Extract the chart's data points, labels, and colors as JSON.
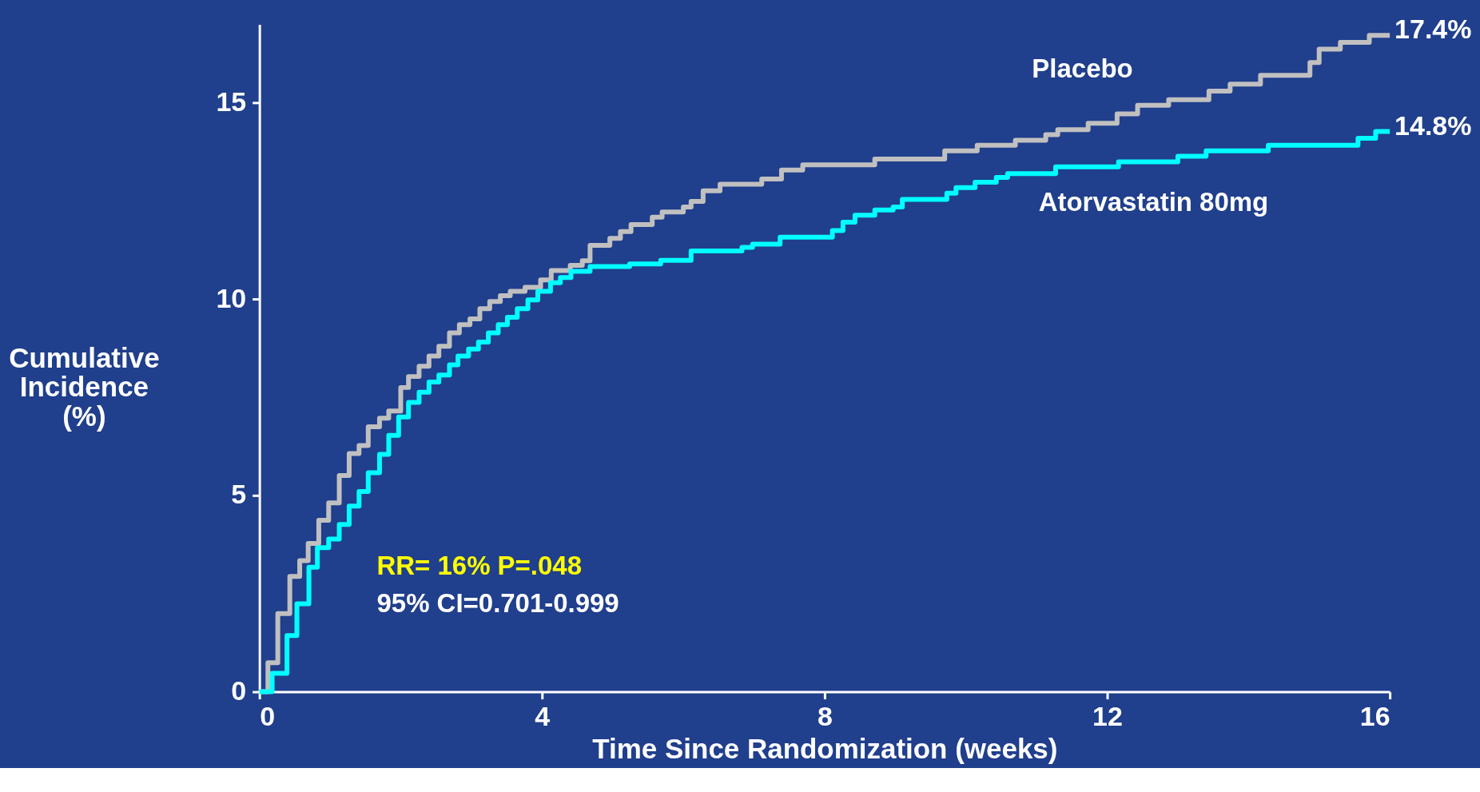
{
  "chart_data": {
    "type": "step",
    "xlabel": "Time Since Randomization (weeks)",
    "ylabel": "Cumulative Incidence (%)",
    "xlim": [
      0,
      16
    ],
    "ylim": [
      0,
      17
    ],
    "xticks": [
      0,
      4,
      8,
      12,
      16
    ],
    "yticks": [
      0,
      5,
      10,
      15
    ],
    "grid": false,
    "legend": false,
    "marker": "none",
    "line_style": "solid",
    "series": [
      {
        "name": "Placebo",
        "color": "#c0c0c0",
        "x": [
          0,
          0.12,
          0.26,
          0.43,
          0.57,
          0.69,
          0.84,
          0.98,
          1.13,
          1.27,
          1.41,
          1.54,
          1.7,
          1.83,
          2.0,
          2.11,
          2.26,
          2.4,
          2.54,
          2.69,
          2.83,
          2.98,
          3.12,
          3.26,
          3.41,
          3.55,
          3.76,
          3.98,
          4.13,
          4.4,
          4.57,
          4.68,
          4.96,
          5.11,
          5.26,
          5.56,
          5.7,
          6.0,
          6.11,
          6.28,
          6.52,
          7.11,
          7.39,
          7.69,
          8.71,
          9.7,
          10.16,
          10.7,
          11.13,
          11.3,
          11.73,
          12.14,
          12.43,
          12.87,
          13.44,
          13.74,
          14.17,
          14.87,
          15.0,
          15.3,
          15.71,
          16.0
        ],
        "values": [
          0,
          0.74,
          1.99,
          2.94,
          3.34,
          3.78,
          4.37,
          4.81,
          5.51,
          6.07,
          6.27,
          6.75,
          6.97,
          7.15,
          7.75,
          8.03,
          8.29,
          8.55,
          8.8,
          9.14,
          9.35,
          9.5,
          9.76,
          9.94,
          10.09,
          10.2,
          10.3,
          10.49,
          10.73,
          10.86,
          10.98,
          11.37,
          11.55,
          11.72,
          11.9,
          12.09,
          12.22,
          12.35,
          12.49,
          12.76,
          12.93,
          13.06,
          13.29,
          13.42,
          13.57,
          13.78,
          13.92,
          14.05,
          14.19,
          14.32,
          14.48,
          14.72,
          14.94,
          15.08,
          15.3,
          15.48,
          15.7,
          16.03,
          16.37,
          16.54,
          16.72,
          16.72
        ]
      },
      {
        "name": "Atorvastatin 80mg",
        "color": "#00ffff",
        "x": [
          0,
          0.18,
          0.39,
          0.53,
          0.7,
          0.82,
          0.98,
          1.13,
          1.27,
          1.41,
          1.54,
          1.7,
          1.83,
          1.97,
          2.11,
          2.26,
          2.4,
          2.54,
          2.69,
          2.81,
          2.96,
          3.1,
          3.24,
          3.38,
          3.51,
          3.65,
          3.8,
          3.94,
          4.12,
          4.26,
          4.41,
          4.68,
          5.24,
          5.68,
          6.11,
          6.83,
          6.98,
          7.37,
          8.11,
          8.26,
          8.43,
          8.71,
          8.97,
          9.1,
          9.73,
          9.86,
          10.13,
          10.43,
          10.59,
          11.27,
          12.16,
          13.0,
          13.4,
          14.28,
          15.55,
          15.8,
          16.0
        ],
        "values": [
          0,
          0.47,
          1.43,
          2.24,
          3.17,
          3.67,
          3.89,
          4.26,
          4.73,
          5.1,
          5.58,
          6.05,
          6.53,
          7.0,
          7.37,
          7.63,
          7.89,
          8.07,
          8.33,
          8.55,
          8.73,
          8.91,
          9.14,
          9.35,
          9.54,
          9.76,
          9.98,
          10.2,
          10.42,
          10.55,
          10.71,
          10.83,
          10.9,
          10.99,
          11.23,
          11.32,
          11.4,
          11.58,
          11.75,
          11.96,
          12.14,
          12.27,
          12.35,
          12.54,
          12.7,
          12.84,
          12.98,
          13.1,
          13.2,
          13.37,
          13.5,
          13.64,
          13.78,
          13.92,
          14.1,
          14.27,
          14.27
        ]
      }
    ],
    "annotations": [
      {
        "text": "17.4%",
        "x": 16,
        "y": 16.72
      },
      {
        "text": "14.8%",
        "x": 16,
        "y": 14.27
      },
      "RR= 16% P=.048",
      "95% CI=0.701-0.999"
    ]
  }
}
